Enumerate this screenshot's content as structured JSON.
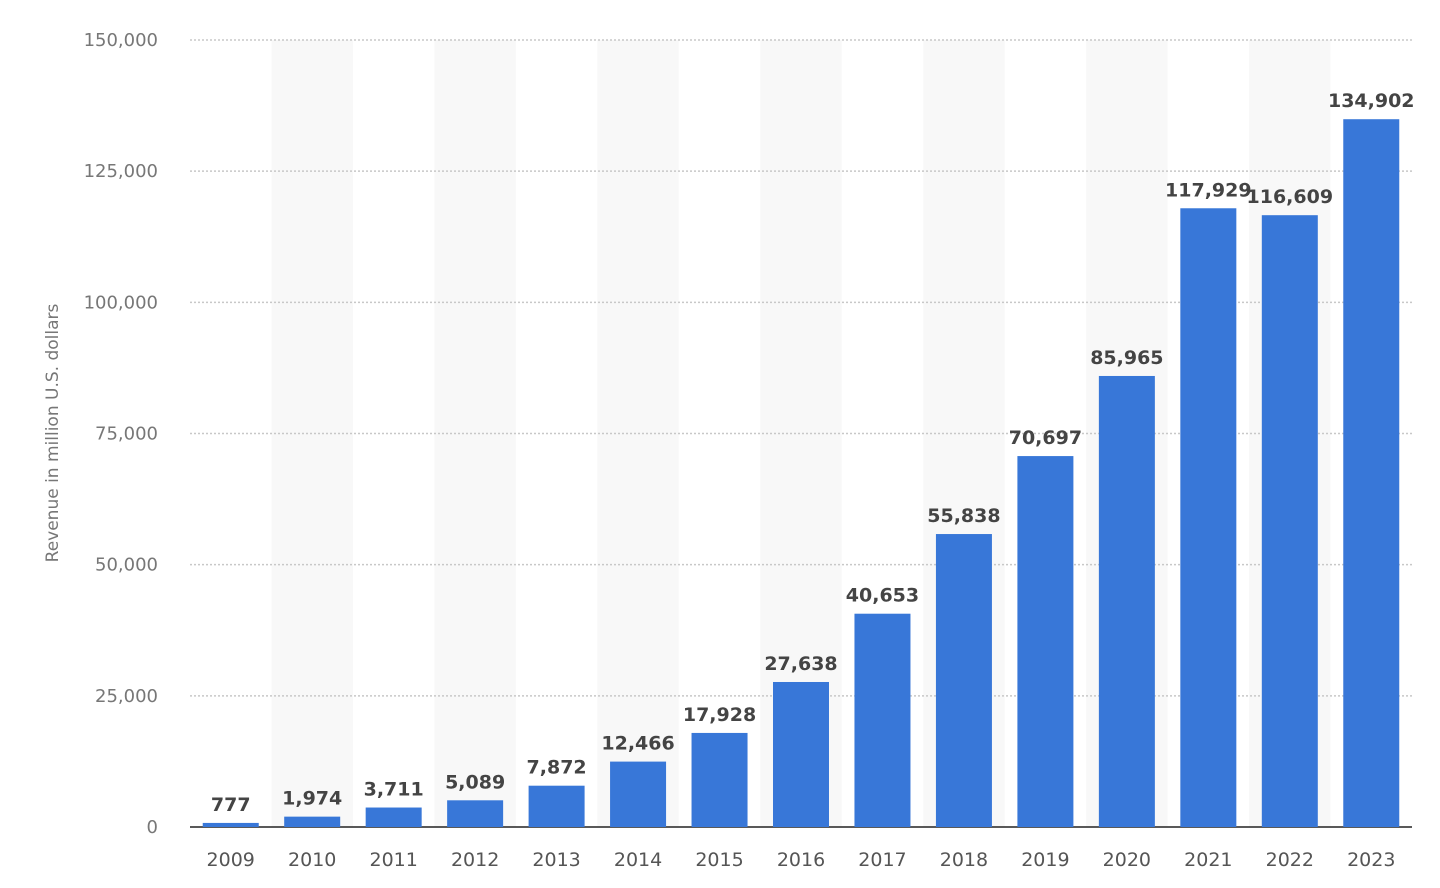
{
  "chart_data": {
    "type": "bar",
    "title": "",
    "xlabel": "",
    "ylabel": "Revenue in million U.S. dollars",
    "ylim": [
      0,
      150000
    ],
    "yticks": [
      0,
      25000,
      50000,
      75000,
      100000,
      125000,
      150000
    ],
    "ytick_labels": [
      "0",
      "25,000",
      "50,000",
      "75,000",
      "100,000",
      "125,000",
      "150,000"
    ],
    "categories": [
      "2009",
      "2010",
      "2011",
      "2012",
      "2013",
      "2014",
      "2015",
      "2016",
      "2017",
      "2018",
      "2019",
      "2020",
      "2021",
      "2022",
      "2023"
    ],
    "values": [
      777,
      1974,
      3711,
      5089,
      7872,
      12466,
      17928,
      27638,
      40653,
      55838,
      70697,
      85965,
      117929,
      116609,
      134902
    ],
    "data_labels": [
      "777",
      "1,974",
      "3,711",
      "5,089",
      "7,872",
      "12,466",
      "17,928",
      "27,638",
      "40,653",
      "55,838",
      "70,697",
      "85,965",
      "117,929",
      "116,609",
      "134,902"
    ],
    "grid": true,
    "legend": "none",
    "colors": {
      "bar": "#3877d8",
      "alt_band": "#f8f8f8",
      "grid": "#c8c8c8"
    }
  }
}
